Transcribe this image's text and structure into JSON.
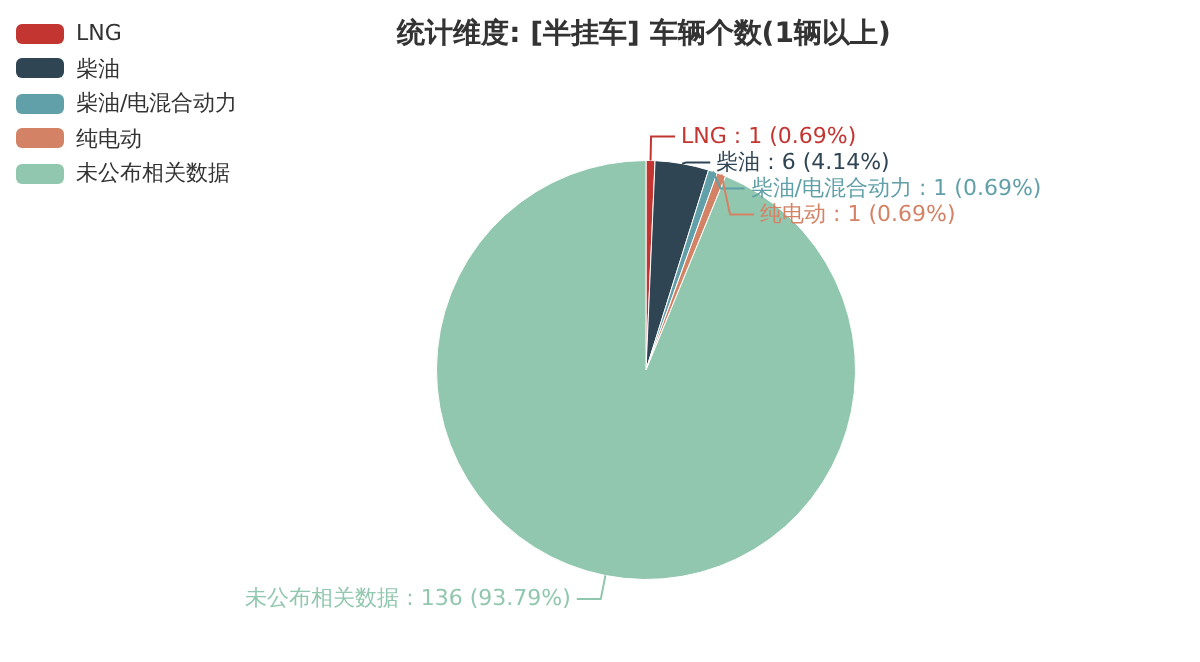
{
  "chart_data": {
    "type": "pie",
    "title": "统计维度: [半挂车] 车辆个数(1辆以上)",
    "categories": [
      "LNG",
      "柴油",
      "柴油/电混合动力",
      "纯电动",
      "未公布相关数据"
    ],
    "values": [
      1,
      6,
      1,
      1,
      136
    ],
    "value_labels": [
      ": 1 (0.69%)",
      ": 6 (4.14%)",
      ": 1 (0.69%)",
      ": 1 (0.69%)",
      ": 136 (93.79%)"
    ],
    "colors": [
      "#c23531",
      "#2f4554",
      "#61a0a8",
      "#d48265",
      "#91c7ae"
    ],
    "legend": "top left"
  }
}
